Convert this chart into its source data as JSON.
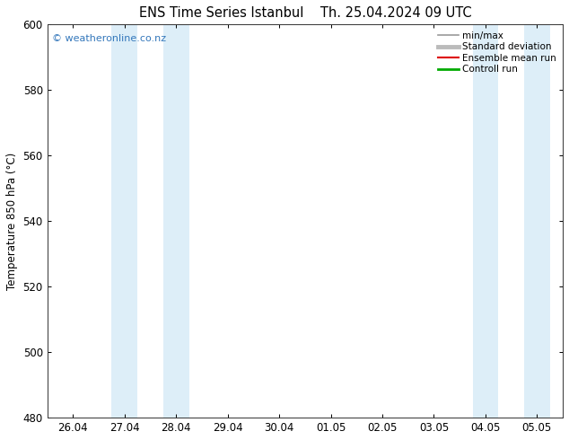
{
  "title_left": "ENS Time Series Istanbul",
  "title_right": "Th. 25.04.2024 09 UTC",
  "ylabel": "Temperature 850 hPa (°C)",
  "ylim": [
    480,
    600
  ],
  "yticks": [
    480,
    500,
    520,
    540,
    560,
    580,
    600
  ],
  "x_labels": [
    "26.04",
    "27.04",
    "28.04",
    "29.04",
    "30.04",
    "01.05",
    "02.05",
    "03.05",
    "04.05",
    "05.05"
  ],
  "x_positions": [
    0,
    1,
    2,
    3,
    4,
    5,
    6,
    7,
    8,
    9
  ],
  "xlim": [
    -0.5,
    9.5
  ],
  "shaded_bands": [
    {
      "x_start": 0.75,
      "x_end": 1.25,
      "color": "#ddeef8"
    },
    {
      "x_start": 1.75,
      "x_end": 2.25,
      "color": "#ddeef8"
    },
    {
      "x_start": 7.75,
      "x_end": 8.25,
      "color": "#ddeef8"
    },
    {
      "x_start": 8.75,
      "x_end": 9.25,
      "color": "#ddeef8"
    }
  ],
  "watermark_text": "© weatheronline.co.nz",
  "watermark_color": "#3377bb",
  "legend_items": [
    {
      "label": "min/max",
      "color": "#999999",
      "lw": 1.2,
      "style": "solid"
    },
    {
      "label": "Standard deviation",
      "color": "#bbbbbb",
      "lw": 3.5,
      "style": "solid"
    },
    {
      "label": "Ensemble mean run",
      "color": "#dd0000",
      "lw": 1.5,
      "style": "solid"
    },
    {
      "label": "Controll run",
      "color": "#00aa00",
      "lw": 2.0,
      "style": "solid"
    }
  ],
  "bg_color": "#ffffff",
  "plot_bg_color": "#ffffff",
  "tick_label_fontsize": 8.5,
  "title_fontsize": 10.5
}
